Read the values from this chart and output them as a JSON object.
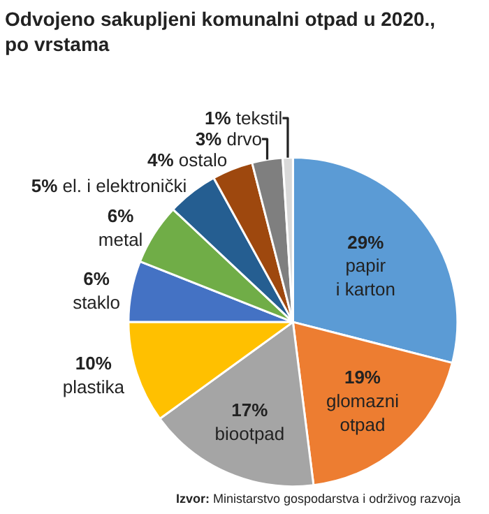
{
  "chart_data": {
    "type": "pie",
    "title": "Odvojeno sakupljeni komunalni otpad u 2020., po vrstama",
    "categories": [
      "papir i karton",
      "glomazni otpad",
      "biootpad",
      "plastika",
      "staklo",
      "metal",
      "el. i elektronički",
      "ostalo",
      "drvo",
      "tekstil"
    ],
    "values": [
      29,
      19,
      17,
      10,
      6,
      6,
      5,
      4,
      3,
      1
    ],
    "colors": [
      "#5b9bd5",
      "#ed7d31",
      "#a5a5a5",
      "#ffc000",
      "#4472c4",
      "#70ad47",
      "#255e91",
      "#9e480e",
      "#7f7f7f",
      "#d9d9d9"
    ],
    "value_labels": [
      "29%",
      "19%",
      "17%",
      "10%",
      "6%",
      "6%",
      "5%",
      "4%",
      "3%",
      "1%"
    ],
    "annotations": [
      "Izvor: Ministarstvo gospodarstva i održivog razvoja"
    ],
    "legend": false
  }
}
